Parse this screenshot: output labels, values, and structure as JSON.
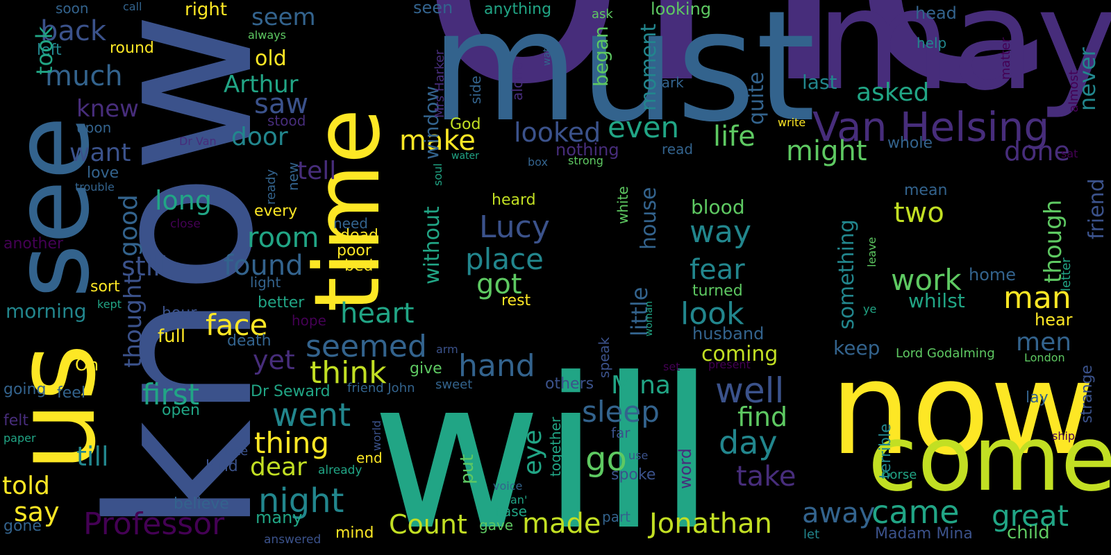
{
  "palette": {
    "yellow": "#fde725",
    "lime": "#c2df23",
    "green": "#5ec962",
    "teal": "#21a585",
    "cyan": "#22868d",
    "blue": "#33638d",
    "indigo": "#3b528b",
    "violet": "#472d7b",
    "dark": "#440154"
  },
  "words": [
    {
      "text": "one",
      "color": "violet"
    },
    {
      "text": "will",
      "color": "teal"
    },
    {
      "text": "know",
      "color": "indigo"
    },
    {
      "text": "must",
      "color": "blue"
    },
    {
      "text": "may",
      "color": "violet"
    },
    {
      "text": "now",
      "color": "yellow"
    },
    {
      "text": "us",
      "color": "yellow"
    },
    {
      "text": "see",
      "color": "blue"
    },
    {
      "text": "time",
      "color": "yellow"
    },
    {
      "text": "come",
      "color": "lime"
    },
    {
      "text": "Van Helsing",
      "color": "violet"
    },
    {
      "text": "Professor",
      "color": "dark"
    },
    {
      "text": "Jonathan",
      "color": "lime"
    },
    {
      "text": "Count",
      "color": "lime"
    },
    {
      "text": "night",
      "color": "cyan"
    },
    {
      "text": "Lucy",
      "color": "indigo"
    },
    {
      "text": "Arthur",
      "color": "teal"
    },
    {
      "text": "place",
      "color": "cyan"
    },
    {
      "text": "heart",
      "color": "teal"
    },
    {
      "text": "hand",
      "color": "blue"
    },
    {
      "text": "face",
      "color": "yellow"
    },
    {
      "text": "seemed",
      "color": "blue"
    },
    {
      "text": "think",
      "color": "lime"
    },
    {
      "text": "first",
      "color": "teal"
    },
    {
      "text": "went",
      "color": "cyan"
    },
    {
      "text": "thing",
      "color": "yellow"
    },
    {
      "text": "dear",
      "color": "lime"
    },
    {
      "text": "came",
      "color": "teal"
    },
    {
      "text": "great",
      "color": "teal"
    },
    {
      "text": "man",
      "color": "yellow"
    },
    {
      "text": "made",
      "color": "lime"
    },
    {
      "text": "away",
      "color": "blue"
    },
    {
      "text": "take",
      "color": "violet"
    },
    {
      "text": "day",
      "color": "cyan"
    },
    {
      "text": "well",
      "color": "indigo"
    },
    {
      "text": "find",
      "color": "green"
    },
    {
      "text": "sleep",
      "color": "blue"
    },
    {
      "text": "go",
      "color": "green"
    },
    {
      "text": "Mina",
      "color": "teal"
    },
    {
      "text": "look",
      "color": "cyan"
    },
    {
      "text": "fear",
      "color": "cyan"
    },
    {
      "text": "work",
      "color": "green"
    },
    {
      "text": "two",
      "color": "lime"
    },
    {
      "text": "way",
      "color": "cyan"
    },
    {
      "text": "might",
      "color": "green"
    },
    {
      "text": "life",
      "color": "green"
    },
    {
      "text": "even",
      "color": "teal"
    },
    {
      "text": "looked",
      "color": "indigo"
    },
    {
      "text": "make",
      "color": "yellow"
    },
    {
      "text": "got",
      "color": "green"
    },
    {
      "text": "room",
      "color": "teal"
    },
    {
      "text": "found",
      "color": "blue"
    },
    {
      "text": "still",
      "color": "indigo"
    },
    {
      "text": "long",
      "color": "teal"
    },
    {
      "text": "want",
      "color": "indigo"
    },
    {
      "text": "knew",
      "color": "violet"
    },
    {
      "text": "much",
      "color": "blue"
    },
    {
      "text": "back",
      "color": "indigo"
    },
    {
      "text": "seem",
      "color": "blue"
    },
    {
      "text": "old",
      "color": "yellow"
    },
    {
      "text": "saw",
      "color": "indigo"
    },
    {
      "text": "door",
      "color": "cyan"
    },
    {
      "text": "tell",
      "color": "violet"
    },
    {
      "text": "yet",
      "color": "violet"
    },
    {
      "text": "asked",
      "color": "teal"
    },
    {
      "text": "done",
      "color": "violet"
    },
    {
      "text": "men",
      "color": "blue"
    },
    {
      "text": "told",
      "color": "yellow"
    },
    {
      "text": "say",
      "color": "yellow"
    },
    {
      "text": "till",
      "color": "cyan"
    },
    {
      "text": "morning",
      "color": "cyan"
    },
    {
      "text": "right",
      "color": "yellow"
    },
    {
      "text": "round",
      "color": "yellow"
    },
    {
      "text": "left",
      "color": "cyan"
    },
    {
      "text": "took",
      "color": "teal"
    },
    {
      "text": "good",
      "color": "blue"
    },
    {
      "text": "thought",
      "color": "indigo"
    },
    {
      "text": "blood",
      "color": "green"
    },
    {
      "text": "keep",
      "color": "blue"
    },
    {
      "text": "coming",
      "color": "lime"
    },
    {
      "text": "husband",
      "color": "blue"
    },
    {
      "text": "whilst",
      "color": "teal"
    },
    {
      "text": "home",
      "color": "blue"
    },
    {
      "text": "hear",
      "color": "yellow"
    },
    {
      "text": "last",
      "color": "cyan"
    },
    {
      "text": "help",
      "color": "cyan"
    },
    {
      "text": "head",
      "color": "blue"
    },
    {
      "text": "looking",
      "color": "green"
    },
    {
      "text": "anything",
      "color": "teal"
    },
    {
      "text": "seen",
      "color": "blue"
    },
    {
      "text": "soon",
      "color": "blue"
    },
    {
      "text": "call",
      "color": "blue"
    },
    {
      "text": "ask",
      "color": "green"
    },
    {
      "text": "always",
      "color": "green"
    },
    {
      "text": "upon",
      "color": "blue"
    },
    {
      "text": "love",
      "color": "blue"
    },
    {
      "text": "trouble",
      "color": "blue"
    },
    {
      "text": "another",
      "color": "dark"
    },
    {
      "text": "close",
      "color": "dark"
    },
    {
      "text": "sort",
      "color": "yellow"
    },
    {
      "text": "kept",
      "color": "teal"
    },
    {
      "text": "going",
      "color": "blue"
    },
    {
      "text": "feel",
      "color": "blue"
    },
    {
      "text": "felt",
      "color": "violet"
    },
    {
      "text": "paper",
      "color": "teal"
    },
    {
      "text": "gone",
      "color": "blue"
    },
    {
      "text": "Oh",
      "color": "yellow"
    },
    {
      "text": "full",
      "color": "yellow"
    },
    {
      "text": "hour",
      "color": "indigo"
    },
    {
      "text": "better",
      "color": "teal"
    },
    {
      "text": "hope",
      "color": "dark"
    },
    {
      "text": "death",
      "color": "blue"
    },
    {
      "text": "light",
      "color": "blue"
    },
    {
      "text": "every",
      "color": "yellow"
    },
    {
      "text": "ready",
      "color": "blue"
    },
    {
      "text": "new",
      "color": "blue"
    },
    {
      "text": "need",
      "color": "blue"
    },
    {
      "text": "dead",
      "color": "yellow"
    },
    {
      "text": "poor",
      "color": "yellow"
    },
    {
      "text": "bed",
      "color": "yellow"
    },
    {
      "text": "Dr Seward",
      "color": "teal"
    },
    {
      "text": "open",
      "color": "teal"
    },
    {
      "text": "late",
      "color": "indigo"
    },
    {
      "text": "kind",
      "color": "indigo"
    },
    {
      "text": "world",
      "color": "indigo"
    },
    {
      "text": "end",
      "color": "yellow"
    },
    {
      "text": "already",
      "color": "teal"
    },
    {
      "text": "believe",
      "color": "blue"
    },
    {
      "text": "many",
      "color": "teal"
    },
    {
      "text": "answered",
      "color": "indigo"
    },
    {
      "text": "mind",
      "color": "yellow"
    },
    {
      "text": "gave",
      "color": "green"
    },
    {
      "text": "case",
      "color": "teal"
    },
    {
      "text": "an'",
      "color": "teal"
    },
    {
      "text": "voice",
      "color": "blue"
    },
    {
      "text": "part",
      "color": "blue"
    },
    {
      "text": "let",
      "color": "cyan"
    },
    {
      "text": "Madam Mina",
      "color": "indigo"
    },
    {
      "text": "child",
      "color": "green"
    },
    {
      "text": "horse",
      "color": "teal"
    },
    {
      "text": "lay",
      "color": "blue"
    },
    {
      "text": "Lord Godalming",
      "color": "green"
    },
    {
      "text": "London",
      "color": "green"
    },
    {
      "text": "terrible",
      "color": "cyan"
    },
    {
      "text": "strange",
      "color": "indigo"
    },
    {
      "text": "ship",
      "color": "dark"
    },
    {
      "text": "letter",
      "color": "teal"
    },
    {
      "text": "almost",
      "color": "dark"
    },
    {
      "text": "matter",
      "color": "dark"
    },
    {
      "text": "sat",
      "color": "dark"
    },
    {
      "text": "friend",
      "color": "indigo"
    },
    {
      "text": "though",
      "color": "green"
    },
    {
      "text": "never",
      "color": "cyan"
    },
    {
      "text": "whole",
      "color": "blue"
    },
    {
      "text": "mean",
      "color": "blue"
    },
    {
      "text": "ye",
      "color": "teal"
    },
    {
      "text": "leave",
      "color": "green"
    },
    {
      "text": "something",
      "color": "cyan"
    },
    {
      "text": "turned",
      "color": "green"
    },
    {
      "text": "present",
      "color": "dark"
    },
    {
      "text": "set",
      "color": "dark"
    },
    {
      "text": "write",
      "color": "yellow"
    },
    {
      "text": "strong",
      "color": "green"
    },
    {
      "text": "water",
      "color": "teal"
    },
    {
      "text": "nothing",
      "color": "violet"
    },
    {
      "text": "read",
      "color": "blue"
    },
    {
      "text": "box",
      "color": "blue"
    },
    {
      "text": "watch",
      "color": "blue"
    },
    {
      "text": "dark",
      "color": "blue"
    },
    {
      "text": "moment",
      "color": "cyan"
    },
    {
      "text": "began",
      "color": "green"
    },
    {
      "text": "quite",
      "color": "blue"
    },
    {
      "text": "little",
      "color": "blue"
    },
    {
      "text": "house",
      "color": "blue"
    },
    {
      "text": "white",
      "color": "green"
    },
    {
      "text": "woman",
      "color": "teal"
    },
    {
      "text": "speak",
      "color": "indigo"
    },
    {
      "text": "others",
      "color": "indigo"
    },
    {
      "text": "far",
      "color": "indigo"
    },
    {
      "text": "use",
      "color": "indigo"
    },
    {
      "text": "spoke",
      "color": "indigo"
    },
    {
      "text": "word",
      "color": "violet"
    },
    {
      "text": "together",
      "color": "teal"
    },
    {
      "text": "eye",
      "color": "teal"
    },
    {
      "text": "put",
      "color": "green"
    },
    {
      "text": "heard",
      "color": "lime"
    },
    {
      "text": "rest",
      "color": "yellow"
    },
    {
      "text": "without",
      "color": "teal"
    },
    {
      "text": "window",
      "color": "blue"
    },
    {
      "text": "soul",
      "color": "teal"
    },
    {
      "text": "God",
      "color": "lime"
    },
    {
      "text": "alone",
      "color": "violet"
    },
    {
      "text": "side",
      "color": "blue"
    },
    {
      "text": "Mrs Harker",
      "color": "violet"
    },
    {
      "text": "arm",
      "color": "indigo"
    },
    {
      "text": "give",
      "color": "green"
    },
    {
      "text": "sweet",
      "color": "blue"
    },
    {
      "text": "friend John",
      "color": "blue"
    },
    {
      "text": "Dr Van",
      "color": "violet"
    },
    {
      "text": "stood",
      "color": "violet"
    }
  ]
}
